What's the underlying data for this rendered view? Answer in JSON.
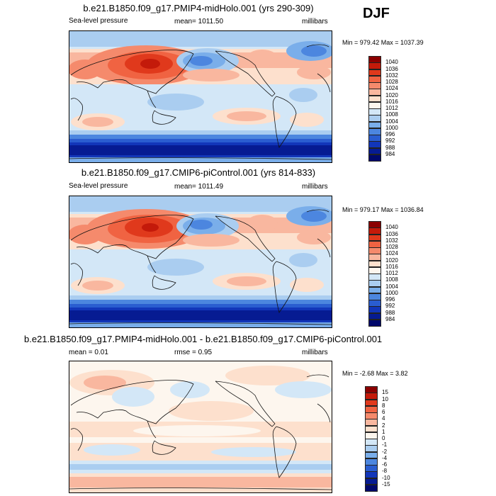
{
  "season": "DJF",
  "panels": [
    {
      "title": "b.e21.B1850.f09_g17.PMIP4-midHolo.001 (yrs 290-309)",
      "left_label": "Sea-level pressure",
      "center_label": "mean= 1011.50",
      "right_label": "millibars",
      "minmax": "Min = 979.42 Max = 1037.39",
      "colorbar_labels": [
        "1040",
        "1036",
        "1032",
        "1028",
        "1024",
        "1020",
        "1016",
        "1012",
        "1008",
        "1004",
        "1000",
        "996",
        "992",
        "988",
        "984"
      ],
      "colorbar_colors": [
        "#8b0000",
        "#c41a0a",
        "#e0391c",
        "#f06342",
        "#f58a6c",
        "#f9b79f",
        "#fde0cd",
        "#fdf6ee",
        "#d3e7f7",
        "#aacdf0",
        "#7aaeea",
        "#4c86df",
        "#2a5dd0",
        "#1236b9",
        "#061b92",
        "#00086b"
      ]
    },
    {
      "title": "b.e21.B1850.f09_g17.CMIP6-piControl.001 (yrs 814-833)",
      "left_label": "Sea-level pressure",
      "center_label": "mean= 1011.49",
      "right_label": "millibars",
      "minmax": "Min = 979.17 Max = 1036.84",
      "colorbar_labels": [
        "1040",
        "1036",
        "1032",
        "1028",
        "1024",
        "1020",
        "1016",
        "1012",
        "1008",
        "1004",
        "1000",
        "996",
        "992",
        "988",
        "984"
      ],
      "colorbar_colors": [
        "#8b0000",
        "#c41a0a",
        "#e0391c",
        "#f06342",
        "#f58a6c",
        "#f9b79f",
        "#fde0cd",
        "#fdf6ee",
        "#d3e7f7",
        "#aacdf0",
        "#7aaeea",
        "#4c86df",
        "#2a5dd0",
        "#1236b9",
        "#061b92",
        "#00086b"
      ]
    },
    {
      "title": "b.e21.B1850.f09_g17.PMIP4-midHolo.001 - b.e21.B1850.f09_g17.CMIP6-piControl.001",
      "left_label": "mean =  0.01",
      "center_label": "rmse =  0.95",
      "right_label": "millibars",
      "minmax": "Min =  -2.68 Max =   3.82",
      "colorbar_labels": [
        "15",
        "10",
        "8",
        "6",
        "4",
        "2",
        "1",
        "0",
        "-1",
        "-2",
        "-4",
        "-6",
        "-8",
        "-10",
        "-15"
      ],
      "colorbar_colors": [
        "#8b0000",
        "#c41a0a",
        "#e0391c",
        "#f06342",
        "#f58a6c",
        "#f9b79f",
        "#fde0cd",
        "#fdf6ee",
        "#d3e7f7",
        "#aacdf0",
        "#7aaeea",
        "#4c86df",
        "#2a5dd0",
        "#1236b9",
        "#061b92",
        "#00086b"
      ]
    }
  ]
}
